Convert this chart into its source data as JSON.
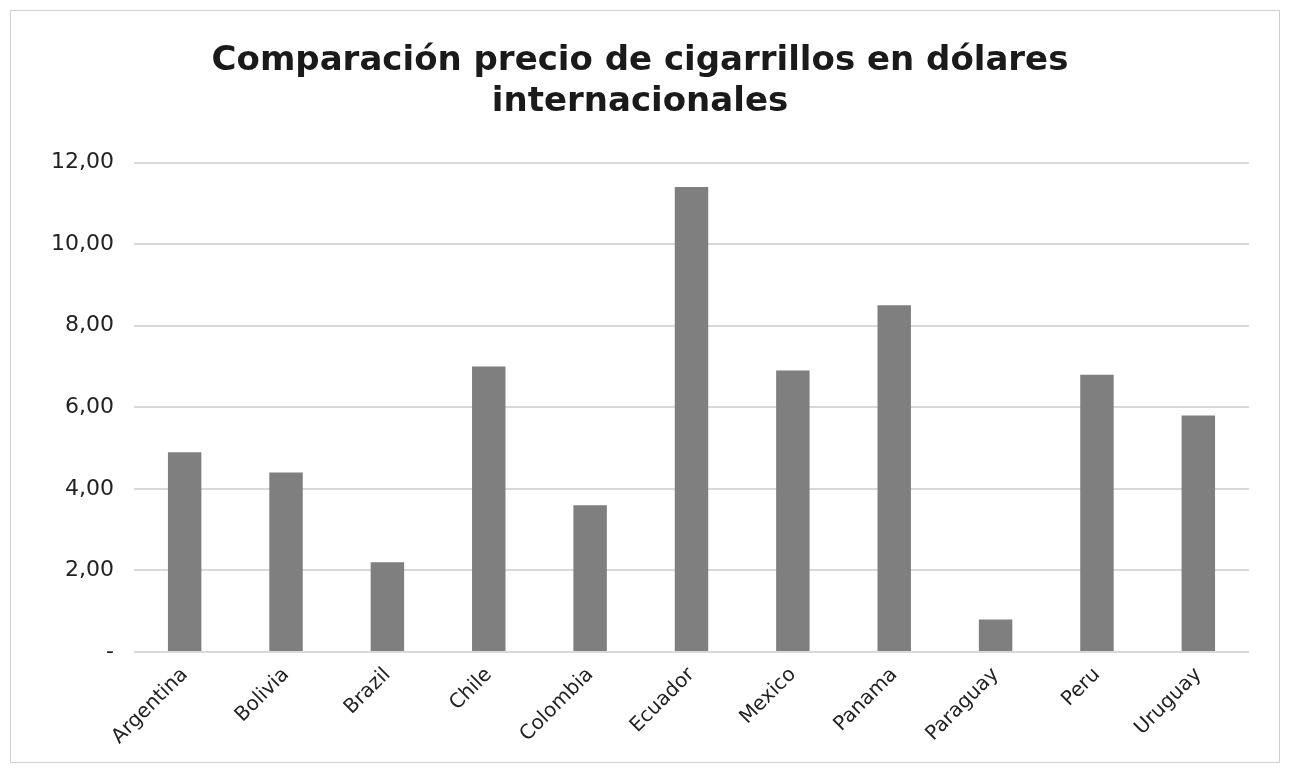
{
  "chart_data": {
    "type": "bar",
    "title": "Comparación precio de cigarrillos en dólares internacionales",
    "categories": [
      "Argentina",
      "Bolivia",
      "Brazil",
      "Chile",
      "Colombia",
      "Ecuador",
      "Mexico",
      "Panama",
      "Paraguay",
      "Peru",
      "Uruguay"
    ],
    "values": [
      4.9,
      4.4,
      2.2,
      7.0,
      3.6,
      11.4,
      6.9,
      8.5,
      0.8,
      6.8,
      5.8
    ],
    "color": "#7f7f7f",
    "ylim": [
      0,
      12
    ],
    "yticks": [
      {
        "value": 0,
        "label": "-"
      },
      {
        "value": 2,
        "label": "2,00"
      },
      {
        "value": 4,
        "label": "4,00"
      },
      {
        "value": 6,
        "label": "6,00"
      },
      {
        "value": 8,
        "label": "8,00"
      },
      {
        "value": 10,
        "label": "10,00"
      },
      {
        "value": 12,
        "label": "12,00"
      }
    ],
    "grid": "y"
  }
}
